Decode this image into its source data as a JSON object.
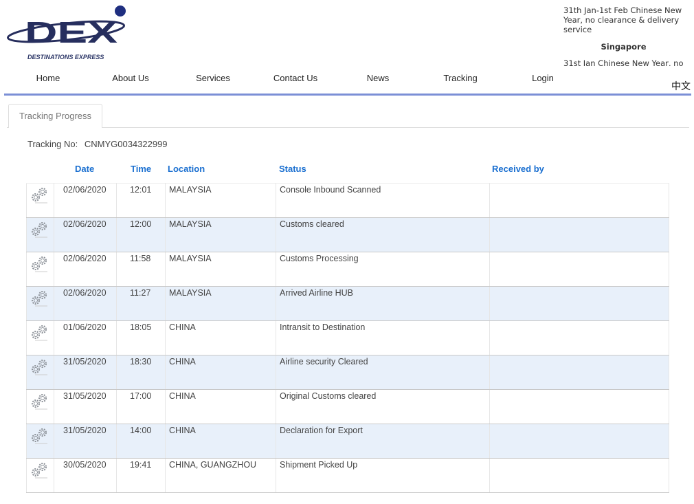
{
  "brand": {
    "name": "DEX",
    "tagline": "DESTINATIONS EXPRESS",
    "color": "#1f2a6b"
  },
  "news": {
    "item1": "31th Jan-1st Feb Chinese New Year, no clearance & delivery service",
    "location": "Singapore",
    "item2": "31st Jan Chinese New Year, no"
  },
  "nav": [
    "Home",
    "About Us",
    "Services",
    "Contact Us",
    "News",
    "Tracking",
    "Login"
  ],
  "language": "中文",
  "tab": "Tracking Progress",
  "tracking": {
    "label": "Tracking No:",
    "number": "CNMYG0034322999"
  },
  "columns": {
    "date": "Date",
    "time": "Time",
    "location": "Location",
    "status": "Status",
    "received": "Received by"
  },
  "rows": [
    {
      "date": "02/06/2020",
      "time": "12:01",
      "location": "MALAYSIA",
      "status": "Console Inbound Scanned",
      "received": ""
    },
    {
      "date": "02/06/2020",
      "time": "12:00",
      "location": "MALAYSIA",
      "status": "Customs cleared",
      "received": ""
    },
    {
      "date": "02/06/2020",
      "time": "11:58",
      "location": "MALAYSIA",
      "status": "Customs Processing",
      "received": ""
    },
    {
      "date": "02/06/2020",
      "time": "11:27",
      "location": "MALAYSIA",
      "status": "Arrived Airline HUB",
      "received": ""
    },
    {
      "date": "01/06/2020",
      "time": "18:05",
      "location": "CHINA",
      "status": "Intransit to Destination",
      "received": ""
    },
    {
      "date": "31/05/2020",
      "time": "18:30",
      "location": "CHINA",
      "status": "Airline security Cleared",
      "received": ""
    },
    {
      "date": "31/05/2020",
      "time": "17:00",
      "location": "CHINA",
      "status": "Original Customs cleared",
      "received": ""
    },
    {
      "date": "31/05/2020",
      "time": "14:00",
      "location": "CHINA",
      "status": "Declaration for Export",
      "received": ""
    },
    {
      "date": "30/05/2020",
      "time": "19:41",
      "location": "CHINA, GUANGZHOU",
      "status": "Shipment Picked Up",
      "received": ""
    }
  ]
}
